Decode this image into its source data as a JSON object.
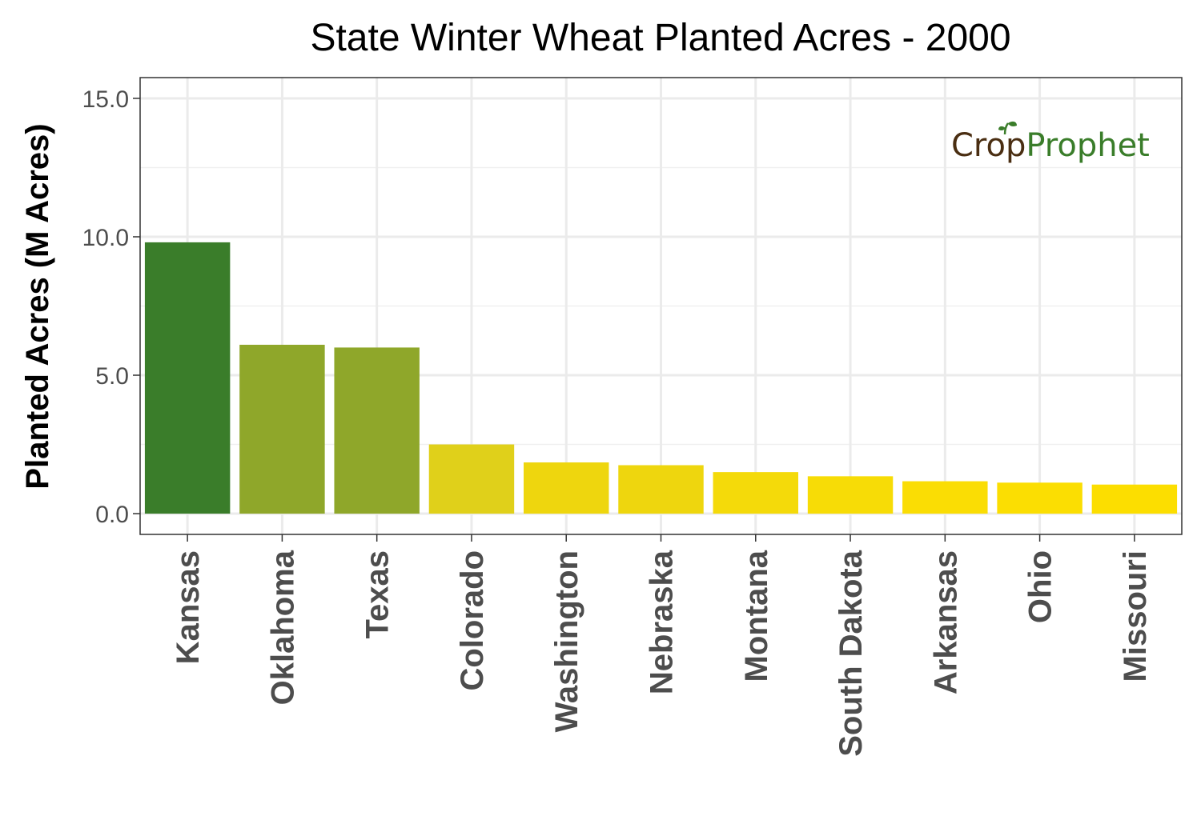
{
  "chart_data": {
    "type": "bar",
    "title": "State Winter Wheat Planted Acres - 2000",
    "xlabel": "",
    "ylabel": "Planted Acres (M Acres)",
    "ylim": [
      -0.75,
      15.75
    ],
    "yticks": [
      0.0,
      5.0,
      10.0,
      15.0
    ],
    "ytick_labels": [
      "0.0",
      "5.0",
      "10.0",
      "15.0"
    ],
    "grid": true,
    "legend": "none",
    "categories": [
      "Kansas",
      "Oklahoma",
      "Texas",
      "Colorado",
      "Washington",
      "Nebraska",
      "Montana",
      "South Dakota",
      "Arkansas",
      "Ohio",
      "Missouri"
    ],
    "values": [
      9.8,
      6.1,
      6.0,
      2.5,
      1.85,
      1.75,
      1.5,
      1.35,
      1.17,
      1.12,
      1.05
    ],
    "bar_colors": [
      "#3a7d2a",
      "#8fa72a",
      "#8fa72a",
      "#e0d01a",
      "#eed60e",
      "#eed60e",
      "#f4da0a",
      "#f7dc06",
      "#fadd04",
      "#fbde02",
      "#fcde00"
    ]
  },
  "logo": {
    "part1": "Cr",
    "part2": "o",
    "part3": "p",
    "part4": "Prophet",
    "color_dark": "#4a2e12",
    "color_green": "#3a7d2a"
  }
}
